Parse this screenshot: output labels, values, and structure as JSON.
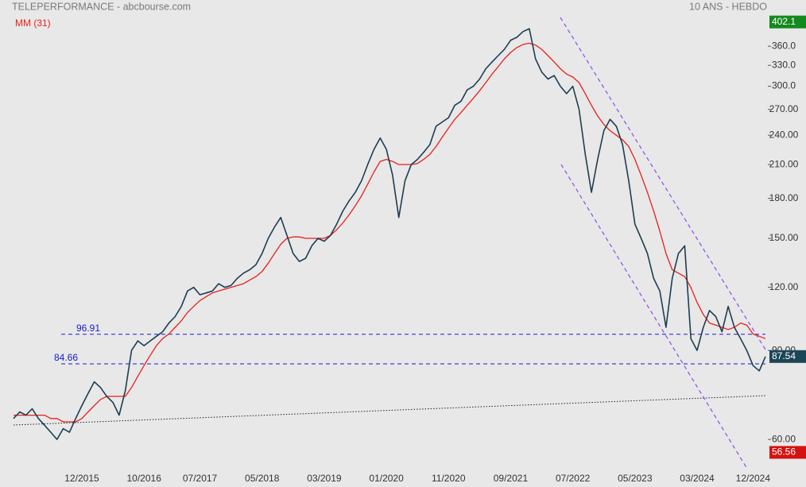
{
  "chart_data": {
    "type": "line",
    "title": "TELEPERFORMANCE - abcbourse.com",
    "subtitle": "10 ANS - HEBDO",
    "log_scale": true,
    "grid": false,
    "ylim": [
      52.5,
      406
    ],
    "yticks": [
      60,
      90,
      120,
      150,
      180,
      210,
      240,
      270,
      300,
      330,
      360
    ],
    "ytick_labels": [
      "60.00",
      "90.00",
      "120.00",
      "150.00",
      "180.00",
      "210.00",
      "240.00",
      "270.00",
      "300.0",
      "330.0",
      "360.0"
    ],
    "categories": [
      null,
      null,
      null,
      null,
      null,
      null,
      null,
      null,
      null,
      null,
      null,
      "12/2015",
      null,
      null,
      null,
      null,
      null,
      null,
      null,
      null,
      null,
      "10/2016",
      null,
      null,
      null,
      null,
      null,
      null,
      null,
      null,
      "07/2017",
      null,
      null,
      null,
      null,
      null,
      null,
      null,
      null,
      null,
      "05/2018",
      null,
      null,
      null,
      null,
      null,
      null,
      null,
      null,
      null,
      "03/2019",
      null,
      null,
      null,
      null,
      null,
      null,
      null,
      null,
      null,
      "01/2020",
      null,
      null,
      null,
      null,
      null,
      null,
      null,
      null,
      null,
      "11/2020",
      null,
      null,
      null,
      null,
      null,
      null,
      null,
      null,
      null,
      "09/2021",
      null,
      null,
      null,
      null,
      null,
      null,
      null,
      null,
      null,
      "07/2022",
      null,
      null,
      null,
      null,
      null,
      null,
      null,
      null,
      null,
      "05/2023",
      null,
      null,
      null,
      null,
      null,
      null,
      null,
      null,
      null,
      "03/2024",
      null,
      null,
      null,
      null,
      null,
      null,
      null,
      null,
      "12/2024",
      null,
      null
    ],
    "series": [
      {
        "name": "TELEPERFORMANCE",
        "color": "#1d3d52",
        "width": 1.6,
        "values": [
          66,
          68,
          67,
          69,
          66,
          64,
          62,
          60,
          63,
          62,
          66,
          70,
          74,
          78,
          76,
          73,
          71,
          67,
          75,
          90,
          94,
          92,
          94,
          96,
          98,
          102,
          105,
          110,
          118,
          120,
          116,
          117,
          118,
          122,
          120,
          121,
          125,
          128,
          130,
          133,
          140,
          150,
          158,
          165,
          152,
          140,
          135,
          137,
          145,
          150,
          148,
          152,
          160,
          170,
          178,
          185,
          195,
          210,
          225,
          237,
          225,
          200,
          165,
          195,
          210,
          215,
          222,
          230,
          250,
          255,
          260,
          275,
          280,
          295,
          300,
          310,
          325,
          335,
          345,
          355,
          370,
          375,
          385,
          390,
          340,
          320,
          310,
          315,
          300,
          290,
          300,
          270,
          220,
          185,
          215,
          245,
          258,
          250,
          230,
          195,
          160,
          150,
          140,
          125,
          118,
          100,
          125,
          140,
          145,
          95,
          90,
          100,
          108,
          105,
          98,
          110,
          100,
          95,
          90,
          84,
          82,
          87.54
        ]
      },
      {
        "name": "MM (31)",
        "color": "#e8201c",
        "width": 1.3,
        "values": [
          67,
          67,
          67,
          67,
          67,
          67,
          66,
          66,
          65,
          65,
          65,
          66,
          68,
          70,
          72,
          73,
          73,
          73,
          73,
          76,
          80,
          84,
          88,
          92,
          95,
          97,
          100,
          103,
          107,
          110,
          113,
          115,
          117,
          118,
          119,
          120,
          121,
          122,
          124,
          126,
          129,
          134,
          140,
          146,
          150,
          151,
          151,
          150,
          150,
          150,
          150,
          152,
          156,
          161,
          167,
          174,
          182,
          192,
          203,
          213,
          215,
          213,
          210,
          210,
          210,
          211,
          215,
          220,
          228,
          238,
          248,
          258,
          266,
          275,
          284,
          294,
          305,
          317,
          328,
          340,
          350,
          358,
          363,
          365,
          362,
          355,
          345,
          335,
          325,
          317,
          313,
          305,
          290,
          275,
          262,
          252,
          245,
          240,
          235,
          228,
          215,
          200,
          185,
          170,
          155,
          140,
          130,
          128,
          126,
          120,
          112,
          106,
          102,
          101,
          100,
          99,
          100,
          102,
          101,
          97,
          96,
          95
        ]
      }
    ],
    "price_markers": [
      {
        "value": 402.1,
        "color": "#138a1c"
      },
      {
        "value": 87.54,
        "color": "#1b4658"
      },
      {
        "value": 56.56,
        "color": "#d41212"
      }
    ],
    "hlines": [
      96.91,
      84.66
    ]
  }
}
